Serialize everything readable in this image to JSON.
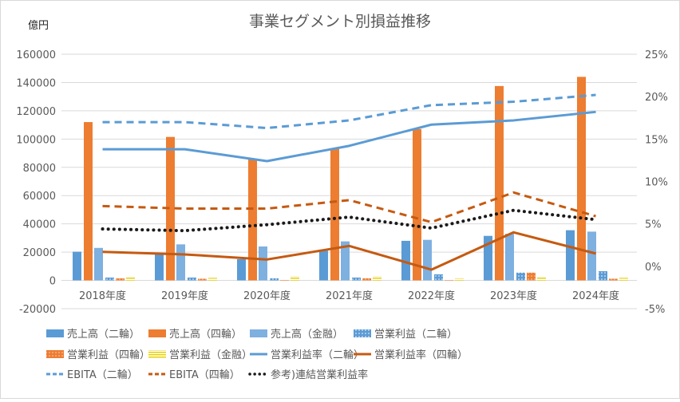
{
  "chart_data": {
    "type": "bar",
    "title": "事業セグメント別損益推移",
    "ylabel": "億円",
    "ylim": [
      -20000,
      160000
    ],
    "y2lim": [
      -5,
      25
    ],
    "yticks": [
      "-20000",
      "0",
      "20000",
      "40000",
      "60000",
      "80000",
      "100000",
      "120000",
      "140000",
      "160000"
    ],
    "y2ticks": [
      "-5%",
      "0%",
      "5%",
      "10%",
      "15%",
      "20%",
      "25%"
    ],
    "grid": true,
    "legend": "bottom",
    "categories": [
      "2018年度",
      "2019年度",
      "2020年度",
      "2021年度",
      "2022年度",
      "2023年度",
      "2024年度"
    ],
    "bar_series": [
      {
        "name": "売上高（二輪）",
        "color": "#5b9bd5",
        "pattern": "solid",
        "values": [
          20300,
          19000,
          15000,
          21000,
          28000,
          31500,
          35500
        ]
      },
      {
        "name": "売上高（四輪）",
        "color": "#ed7d31",
        "pattern": "solid",
        "values": [
          112000,
          101500,
          86000,
          93500,
          107000,
          137500,
          144000
        ]
      },
      {
        "name": "売上高（金融）",
        "color": "#7eb0e0",
        "pattern": "solid",
        "values": [
          23000,
          25500,
          24000,
          27600,
          28700,
          33000,
          34500
        ]
      },
      {
        "name": "営業利益（二輪）",
        "color": "#5b9bd5",
        "pattern": "dots",
        "values": [
          2000,
          2000,
          1500,
          2000,
          4300,
          5500,
          6500
        ]
      },
      {
        "name": "営業利益（四輪）",
        "color": "#ed7d31",
        "pattern": "dots",
        "values": [
          1500,
          1200,
          300,
          1500,
          0,
          5500,
          1200
        ]
      },
      {
        "name": "営業利益（金融）",
        "color": "#e8d000",
        "pattern": "stripes",
        "values": [
          2000,
          1800,
          3000,
          3000,
          1500,
          2000,
          1800
        ]
      }
    ],
    "line_series": [
      {
        "name": "営業利益率（二輪）",
        "color": "#5b9bd5",
        "style": "solid",
        "values": [
          13.8,
          13.8,
          12.4,
          14.2,
          16.7,
          17.2,
          18.2
        ]
      },
      {
        "name": "営業利益率（四輪）",
        "color": "#c55a11",
        "style": "solid",
        "values": [
          1.7,
          1.4,
          0.8,
          2.4,
          -0.4,
          4.0,
          1.5
        ]
      },
      {
        "name": "EBITA（二輪）",
        "color": "#5b9bd5",
        "style": "dashed",
        "values": [
          17.0,
          17.0,
          16.3,
          17.2,
          19.0,
          19.4,
          20.2
        ]
      },
      {
        "name": "EBITA（四輪）",
        "color": "#c55a11",
        "style": "dashed",
        "values": [
          7.1,
          6.8,
          6.8,
          7.8,
          5.2,
          8.7,
          5.9
        ]
      },
      {
        "name": "参考)連結営業利益率",
        "color": "#1a1a1a",
        "style": "dotted",
        "values": [
          4.4,
          4.2,
          4.9,
          5.8,
          4.5,
          6.6,
          5.5
        ]
      }
    ]
  }
}
